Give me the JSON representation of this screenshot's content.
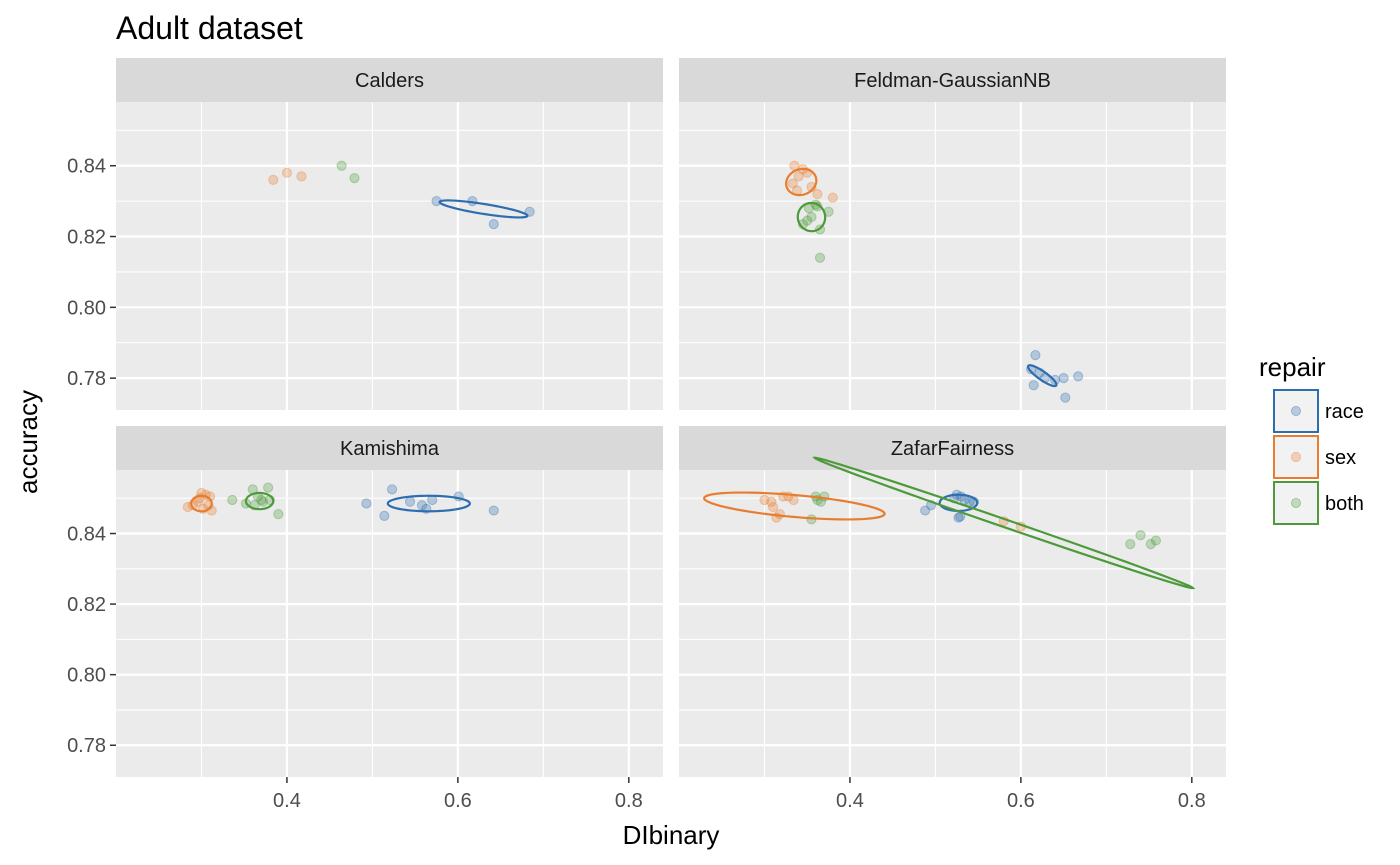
{
  "chart_data": {
    "type": "scatter",
    "title": "Adult dataset",
    "xlabel": "DIbinary",
    "ylabel": "accuracy",
    "xlim": [
      0.2,
      0.84
    ],
    "ylim": [
      0.771,
      0.858
    ],
    "x_ticks": [
      0.4,
      0.6,
      0.8
    ],
    "x_tick_labels": [
      "0.4",
      "0.6",
      "0.8"
    ],
    "y_ticks": [
      0.78,
      0.8,
      0.82,
      0.84
    ],
    "y_tick_labels": [
      "0.78",
      "0.80",
      "0.82",
      "0.84"
    ],
    "grid": true,
    "legend": {
      "title": "repair",
      "position": "right",
      "entries": [
        {
          "label": "race",
          "color": "#2E6EAF"
        },
        {
          "label": "sex",
          "color": "#E87D2F"
        },
        {
          "label": "both",
          "color": "#4C9A3A"
        }
      ]
    },
    "panels": [
      {
        "name": "Calders",
        "series": [
          {
            "repair": "race",
            "points": [
              [
                0.575,
                0.83
              ],
              [
                0.617,
                0.83
              ],
              [
                0.642,
                0.8235
              ],
              [
                0.684,
                0.827
              ]
            ],
            "ellipse": {
              "cx": 0.63,
              "cy": 0.8278,
              "rx": 0.052,
              "ry": 0.0014,
              "angle_deg": 9
            }
          },
          {
            "repair": "sex",
            "points": [
              [
                0.384,
                0.836
              ],
              [
                0.4,
                0.838
              ],
              [
                0.417,
                0.837
              ]
            ]
          },
          {
            "repair": "both",
            "points": [
              [
                0.464,
                0.84
              ],
              [
                0.479,
                0.8365
              ]
            ]
          }
        ]
      },
      {
        "name": "Feldman-GaussianNB",
        "series": [
          {
            "repair": "race",
            "points": [
              [
                0.617,
                0.7865
              ],
              [
                0.612,
                0.7825
              ],
              [
                0.622,
                0.7815
              ],
              [
                0.628,
                0.78
              ],
              [
                0.615,
                0.778
              ],
              [
                0.65,
                0.78
              ],
              [
                0.667,
                0.7805
              ],
              [
                0.652,
                0.7745
              ],
              [
                0.64,
                0.7795
              ]
            ],
            "ellipse": {
              "cx": 0.625,
              "cy": 0.7807,
              "rx": 0.02,
              "ry": 0.0012,
              "angle_deg": 35
            }
          },
          {
            "repair": "sex",
            "points": [
              [
                0.335,
                0.84
              ],
              [
                0.345,
                0.839
              ],
              [
                0.34,
                0.837
              ],
              [
                0.35,
                0.838
              ],
              [
                0.333,
                0.835
              ],
              [
                0.338,
                0.833
              ],
              [
                0.355,
                0.834
              ],
              [
                0.362,
                0.832
              ],
              [
                0.38,
                0.831
              ]
            ],
            "ellipse": {
              "cx": 0.343,
              "cy": 0.8354,
              "rx": 0.018,
              "ry": 0.0036,
              "angle_deg": -20
            }
          },
          {
            "repair": "both",
            "points": [
              [
                0.345,
                0.8235
              ],
              [
                0.35,
                0.8245
              ],
              [
                0.355,
                0.8255
              ],
              [
                0.36,
                0.829
              ],
              [
                0.365,
                0.822
              ],
              [
                0.365,
                0.814
              ],
              [
                0.375,
                0.827
              ],
              [
                0.352,
                0.828
              ],
              [
                0.362,
                0.8285
              ]
            ],
            "ellipse": {
              "cx": 0.355,
              "cy": 0.8255,
              "rx": 0.016,
              "ry": 0.004,
              "angle_deg": -15
            }
          }
        ]
      },
      {
        "name": "Kamishima",
        "series": [
          {
            "repair": "race",
            "points": [
              [
                0.493,
                0.8485
              ],
              [
                0.514,
                0.845
              ],
              [
                0.523,
                0.8525
              ],
              [
                0.544,
                0.849
              ],
              [
                0.558,
                0.848
              ],
              [
                0.563,
                0.847
              ],
              [
                0.57,
                0.8495
              ],
              [
                0.601,
                0.8505
              ],
              [
                0.642,
                0.8465
              ]
            ],
            "ellipse": {
              "cx": 0.566,
              "cy": 0.8485,
              "rx": 0.048,
              "ry": 0.0022,
              "angle_deg": 0
            }
          },
          {
            "repair": "sex",
            "points": [
              [
                0.284,
                0.8475
              ],
              [
                0.29,
                0.848
              ],
              [
                0.296,
                0.849
              ],
              [
                0.3,
                0.8515
              ],
              [
                0.305,
                0.851
              ],
              [
                0.31,
                0.8505
              ],
              [
                0.302,
                0.847
              ],
              [
                0.308,
                0.848
              ],
              [
                0.312,
                0.8465
              ],
              [
                0.298,
                0.85
              ]
            ],
            "ellipse": {
              "cx": 0.3,
              "cy": 0.8485,
              "rx": 0.012,
              "ry": 0.0022,
              "angle_deg": 0
            }
          },
          {
            "repair": "both",
            "points": [
              [
                0.336,
                0.8495
              ],
              [
                0.352,
                0.8485
              ],
              [
                0.36,
                0.8525
              ],
              [
                0.366,
                0.8505
              ],
              [
                0.37,
                0.8495
              ],
              [
                0.378,
                0.853
              ],
              [
                0.38,
                0.8495
              ],
              [
                0.39,
                0.8455
              ],
              [
                0.362,
                0.848
              ],
              [
                0.372,
                0.849
              ]
            ],
            "ellipse": {
              "cx": 0.368,
              "cy": 0.8492,
              "rx": 0.016,
              "ry": 0.0023,
              "angle_deg": 0
            }
          }
        ]
      },
      {
        "name": "ZafarFairness",
        "series": [
          {
            "repair": "race",
            "points": [
              [
                0.488,
                0.8465
              ],
              [
                0.495,
                0.848
              ],
              [
                0.522,
                0.85
              ],
              [
                0.525,
                0.851
              ],
              [
                0.53,
                0.8505
              ],
              [
                0.54,
                0.849
              ],
              [
                0.545,
                0.849
              ],
              [
                0.527,
                0.8445
              ],
              [
                0.529,
                0.8448
              ],
              [
                0.534,
                0.8495
              ]
            ],
            "ellipse": {
              "cx": 0.527,
              "cy": 0.8487,
              "rx": 0.022,
              "ry": 0.0023,
              "angle_deg": 0
            }
          },
          {
            "repair": "sex",
            "points": [
              [
                0.3,
                0.8495
              ],
              [
                0.31,
                0.8475
              ],
              [
                0.314,
                0.8445
              ],
              [
                0.318,
                0.8455
              ],
              [
                0.322,
                0.8505
              ],
              [
                0.328,
                0.8505
              ],
              [
                0.334,
                0.8495
              ],
              [
                0.58,
                0.8435
              ],
              [
                0.6,
                0.842
              ],
              [
                0.308,
                0.849
              ]
            ],
            "ellipse": {
              "cx": 0.335,
              "cy": 0.8478,
              "rx": 0.106,
              "ry": 0.0031,
              "angle_deg": 5
            }
          },
          {
            "repair": "both",
            "points": [
              [
                0.355,
                0.844
              ],
              [
                0.36,
                0.8505
              ],
              [
                0.366,
                0.849
              ],
              [
                0.37,
                0.8505
              ],
              [
                0.728,
                0.837
              ],
              [
                0.74,
                0.8395
              ],
              [
                0.752,
                0.837
              ],
              [
                0.758,
                0.838
              ],
              [
                0.362,
                0.8495
              ]
            ],
            "ellipse": {
              "cx": 0.58,
              "cy": 0.843,
              "rx": 0.234,
              "ry": 0.0011,
              "angle_deg": 19
            }
          }
        ]
      }
    ]
  }
}
